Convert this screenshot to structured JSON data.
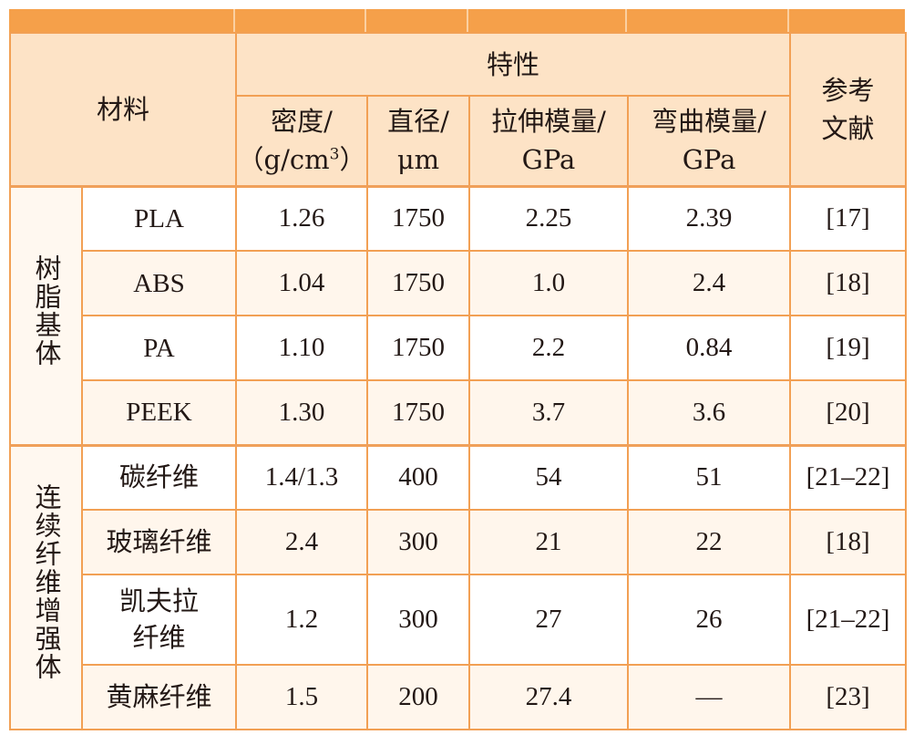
{
  "table": {
    "header": {
      "material": "材料",
      "properties": "特性",
      "reference_line1": "参考",
      "reference_line2": "文献",
      "density_line1": "密度/",
      "density_line2_prefix": "（g/cm",
      "density_line2_sup": "3",
      "density_line2_suffix": "）",
      "diameter_line1": "直径/",
      "diameter_line2": "μm",
      "tensile_line1": "拉伸模量/",
      "tensile_line2": "GPa",
      "flexural_line1": "弯曲模量/",
      "flexural_line2": "GPa"
    },
    "groups": [
      {
        "name": "树脂基体",
        "rows": [
          {
            "material": "PLA",
            "density": "1.26",
            "diameter": "1750",
            "tensile": "2.25",
            "flexural": "2.39",
            "ref": "[17]"
          },
          {
            "material": "ABS",
            "density": "1.04",
            "diameter": "1750",
            "tensile": "1.0",
            "flexural": "2.4",
            "ref": "[18]"
          },
          {
            "material": "PA",
            "density": "1.10",
            "diameter": "1750",
            "tensile": "2.2",
            "flexural": "0.84",
            "ref": "[19]"
          },
          {
            "material": "PEEK",
            "density": "1.30",
            "diameter": "1750",
            "tensile": "3.7",
            "flexural": "3.6",
            "ref": "[20]"
          }
        ]
      },
      {
        "name": "连续纤维增强体",
        "rows": [
          {
            "material": "碳纤维",
            "density": "1.4/1.3",
            "diameter": "400",
            "tensile": "54",
            "flexural": "51",
            "ref": "[21–22]"
          },
          {
            "material": "玻璃纤维",
            "density": "2.4",
            "diameter": "300",
            "tensile": "21",
            "flexural": "22",
            "ref": "[18]"
          },
          {
            "material": "凯夫拉纤维",
            "material_line1": "凯夫拉",
            "material_line2": "纤维",
            "density": "1.2",
            "diameter": "300",
            "tensile": "27",
            "flexural": "26",
            "ref": "[21–22]"
          },
          {
            "material": "黄麻纤维",
            "density": "1.5",
            "diameter": "200",
            "tensile": "27.4",
            "flexural": "—",
            "ref": "[23]"
          }
        ]
      }
    ]
  },
  "colors": {
    "header_bar": "#f5a04a",
    "header_bg": "#fde3c6",
    "rule": "#f2a054",
    "stripe": "#fff6ec"
  }
}
